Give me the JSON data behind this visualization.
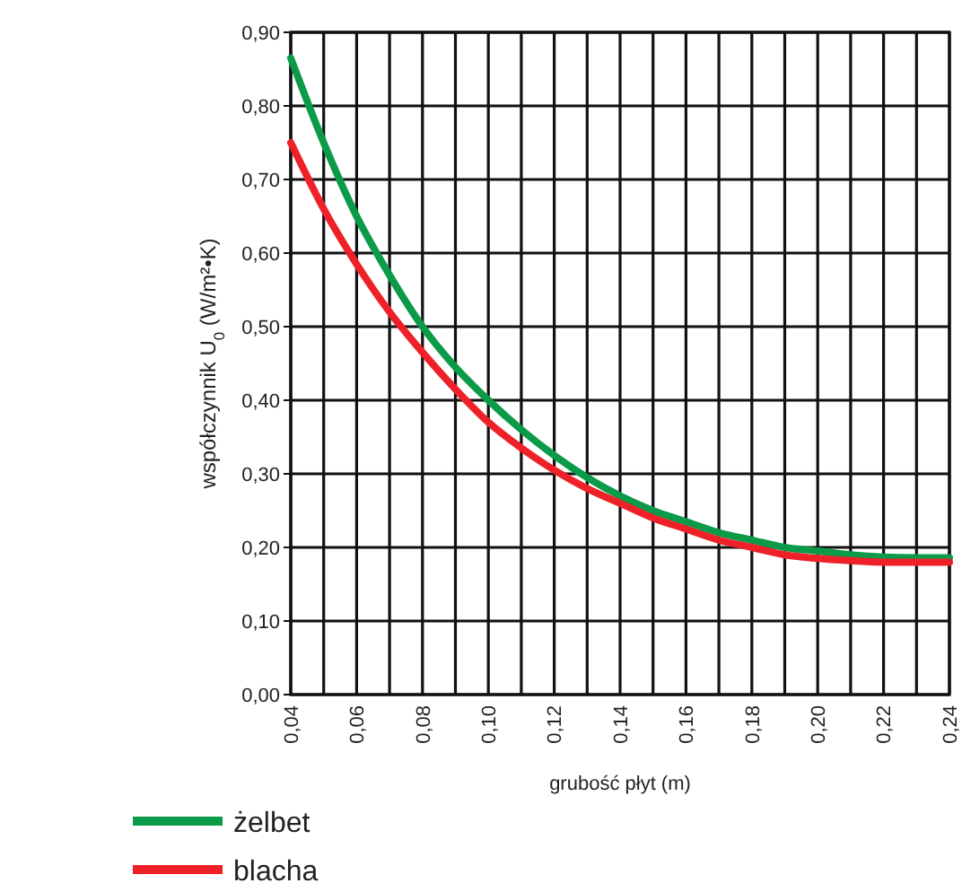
{
  "chart_data": {
    "type": "line",
    "xlabel": "grubość płyt  (m)",
    "ylabel": "współczynnik U$_{0}$ (W/m²•K)",
    "x": [
      0.04,
      0.05,
      0.06,
      0.07,
      0.08,
      0.09,
      0.1,
      0.11,
      0.12,
      0.13,
      0.14,
      0.15,
      0.16,
      0.17,
      0.18,
      0.19,
      0.2,
      0.21,
      0.22,
      0.23,
      0.24
    ],
    "series": [
      {
        "name": "żelbet",
        "color": "#0a9a48",
        "values": [
          0.865,
          0.75,
          0.65,
          0.57,
          0.5,
          0.445,
          0.4,
          0.36,
          0.325,
          0.295,
          0.27,
          0.25,
          0.235,
          0.22,
          0.21,
          0.2,
          0.195,
          0.19,
          0.187,
          0.186,
          0.186
        ]
      },
      {
        "name": "blacha",
        "color": "#ee2129",
        "values": [
          0.75,
          0.66,
          0.585,
          0.52,
          0.465,
          0.415,
          0.37,
          0.335,
          0.305,
          0.28,
          0.26,
          0.24,
          0.225,
          0.21,
          0.2,
          0.19,
          0.185,
          0.182,
          0.18,
          0.18,
          0.18
        ]
      }
    ],
    "xlim": [
      0.04,
      0.24
    ],
    "xticks": [
      {
        "value": 0.04,
        "label": "0,04"
      },
      {
        "value": 0.05,
        "label": null
      },
      {
        "value": 0.06,
        "label": "0,06"
      },
      {
        "value": 0.07,
        "label": null
      },
      {
        "value": 0.08,
        "label": "0,08"
      },
      {
        "value": 0.09,
        "label": null
      },
      {
        "value": 0.1,
        "label": "0,10"
      },
      {
        "value": 0.11,
        "label": null
      },
      {
        "value": 0.12,
        "label": "0,12"
      },
      {
        "value": 0.13,
        "label": null
      },
      {
        "value": 0.14,
        "label": "0,14"
      },
      {
        "value": 0.15,
        "label": null
      },
      {
        "value": 0.16,
        "label": "0,16"
      },
      {
        "value": 0.17,
        "label": null
      },
      {
        "value": 0.18,
        "label": "0,18"
      },
      {
        "value": 0.19,
        "label": null
      },
      {
        "value": 0.2,
        "label": "0,20"
      },
      {
        "value": 0.21,
        "label": null
      },
      {
        "value": 0.22,
        "label": "0,22"
      },
      {
        "value": 0.23,
        "label": null
      },
      {
        "value": 0.24,
        "label": "0,24"
      }
    ],
    "ylim": [
      0,
      0.9
    ],
    "yticks": [
      {
        "value": 0,
        "label": "0,00"
      },
      {
        "value": 0.1,
        "label": "0,10"
      },
      {
        "value": 0.2,
        "label": "0,20"
      },
      {
        "value": 0.3,
        "label": "0,30"
      },
      {
        "value": 0.4,
        "label": "0,40"
      },
      {
        "value": 0.5,
        "label": "0,50"
      },
      {
        "value": 0.6,
        "label": "0,60"
      },
      {
        "value": 0.7,
        "label": "0,70"
      },
      {
        "value": 0.8,
        "label": "0,80"
      },
      {
        "value": 0.9,
        "label": "0,90"
      }
    ],
    "grid": true,
    "legend": "bottom left",
    "line_style": "solid",
    "marker": "none"
  }
}
